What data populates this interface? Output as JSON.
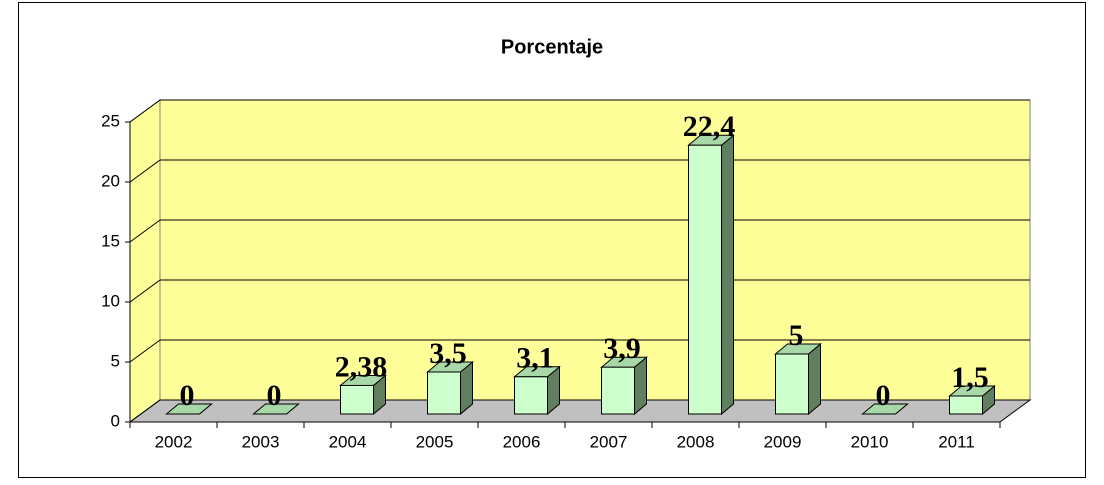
{
  "chart_data": {
    "type": "bar",
    "title": "Porcentaje",
    "categories": [
      "2002",
      "2003",
      "2004",
      "2005",
      "2006",
      "2007",
      "2008",
      "2009",
      "2010",
      "2011"
    ],
    "values": [
      0,
      0,
      2.38,
      3.5,
      3.1,
      3.9,
      22.4,
      5,
      0,
      1.5
    ],
    "value_labels": [
      "0",
      "0",
      "2,38",
      "3,5",
      "3,1",
      "3,9",
      "22,4",
      "5",
      "0",
      "1,5"
    ],
    "color": "#ccffcc",
    "ylim": [
      0,
      25
    ],
    "yticks": [
      0,
      5,
      10,
      15,
      20,
      25
    ],
    "grid": true
  }
}
